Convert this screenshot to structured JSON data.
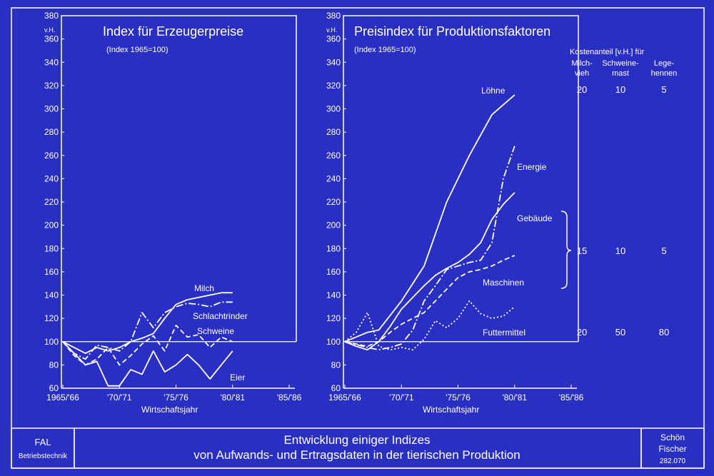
{
  "colors": {
    "background": "#2a2fc4",
    "foreground": "#ffffff"
  },
  "footer": {
    "left_line1": "FAL",
    "left_line2": "Betriebstechnik",
    "title_line1": "Entwicklung einiger Indizes",
    "title_line2": "von Aufwands- und Ertragsdaten in der tierischen Produktion",
    "right_line1": "Schön",
    "right_line2": "Fischer",
    "right_line3": "282.070"
  },
  "cost_share": {
    "header": "Kostenanteil [v.H.] für",
    "columns": [
      "Milch-\nvieh",
      "Schweine-\nmast",
      "Lege-\nhennen"
    ],
    "rows": [
      {
        "label": "Löhne",
        "values": [
          "20",
          "10",
          "5"
        ]
      },
      {
        "label": "Energie, Gebäude, Maschinen",
        "values": [
          "15",
          "10",
          "5"
        ]
      },
      {
        "label": "Futtermittel",
        "values": [
          "20",
          "50",
          "80"
        ]
      }
    ]
  },
  "chart_data": [
    {
      "type": "line",
      "title": "Index für Erzeugerpreise",
      "subtitle": "(Index 1965=100)",
      "xlabel": "Wirtschaftsjahr",
      "ylabel": "v.H.",
      "x_ticks": [
        "1965/'66",
        "'70/'71",
        "'75/'76",
        "'80/'81",
        "'85/'86"
      ],
      "xlim": [
        1965,
        1985
      ],
      "ylim": [
        60,
        380
      ],
      "y_ticks": [
        60,
        80,
        100,
        120,
        140,
        160,
        180,
        200,
        220,
        240,
        260,
        280,
        300,
        320,
        340,
        360,
        380
      ],
      "baseline": 100,
      "series": [
        {
          "name": "Milch",
          "style": "solid",
          "points": [
            [
              1965,
              100
            ],
            [
              1966,
              95
            ],
            [
              1967,
              90
            ],
            [
              1968,
              95
            ],
            [
              1969,
              92
            ],
            [
              1970,
              95
            ],
            [
              1971,
              100
            ],
            [
              1972,
              103
            ],
            [
              1973,
              107
            ],
            [
              1974,
              120
            ],
            [
              1975,
              132
            ],
            [
              1976,
              136
            ],
            [
              1977,
              138
            ],
            [
              1978,
              140
            ],
            [
              1979,
              142
            ],
            [
              1980,
              142
            ]
          ]
        },
        {
          "name": "Schlachtrinder",
          "style": "dashdot",
          "points": [
            [
              1965,
              100
            ],
            [
              1966,
              90
            ],
            [
              1967,
              85
            ],
            [
              1968,
              97
            ],
            [
              1969,
              95
            ],
            [
              1970,
              92
            ],
            [
              1971,
              100
            ],
            [
              1972,
              125
            ],
            [
              1973,
              112
            ],
            [
              1974,
              125
            ],
            [
              1975,
              130
            ],
            [
              1976,
              133
            ],
            [
              1977,
              132
            ],
            [
              1978,
              130
            ],
            [
              1979,
              134
            ],
            [
              1980,
              134
            ]
          ]
        },
        {
          "name": "Schweine",
          "style": "dashed",
          "points": [
            [
              1965,
              100
            ],
            [
              1966,
              88
            ],
            [
              1967,
              80
            ],
            [
              1968,
              85
            ],
            [
              1969,
              95
            ],
            [
              1970,
              80
            ],
            [
              1971,
              88
            ],
            [
              1972,
              98
            ],
            [
              1973,
              105
            ],
            [
              1974,
              92
            ],
            [
              1975,
              114
            ],
            [
              1976,
              104
            ],
            [
              1977,
              106
            ],
            [
              1978,
              95
            ],
            [
              1979,
              104
            ],
            [
              1980,
              100
            ]
          ]
        },
        {
          "name": "Eier",
          "style": "solid",
          "points": [
            [
              1965,
              100
            ],
            [
              1966,
              90
            ],
            [
              1967,
              80
            ],
            [
              1968,
              83
            ],
            [
              1969,
              62
            ],
            [
              1970,
              62
            ],
            [
              1971,
              76
            ],
            [
              1972,
              72
            ],
            [
              1973,
              92
            ],
            [
              1974,
              74
            ],
            [
              1975,
              80
            ],
            [
              1976,
              89
            ],
            [
              1977,
              80
            ],
            [
              1978,
              68
            ],
            [
              1979,
              80
            ],
            [
              1980,
              92
            ]
          ]
        }
      ]
    },
    {
      "type": "line",
      "title": "Preisindex für Produktionsfaktoren",
      "subtitle": "(Index 1965=100)",
      "xlabel": "Wirtschaftsjahr",
      "ylabel": "v.H.",
      "x_ticks": [
        "1965/'66",
        "'70/'71",
        "'75/'76",
        "'80/'81",
        "'85/'86"
      ],
      "xlim": [
        1965,
        1985
      ],
      "ylim": [
        60,
        380
      ],
      "y_ticks": [
        60,
        80,
        100,
        120,
        140,
        160,
        180,
        200,
        220,
        240,
        260,
        280,
        300,
        320,
        340,
        360,
        380
      ],
      "baseline": 100,
      "series": [
        {
          "name": "Löhne",
          "style": "solid",
          "points": [
            [
              1965,
              100
            ],
            [
              1967,
              108
            ],
            [
              1968,
              110
            ],
            [
              1970,
              135
            ],
            [
              1972,
              165
            ],
            [
              1974,
              220
            ],
            [
              1976,
              260
            ],
            [
              1978,
              295
            ],
            [
              1980,
              312
            ]
          ]
        },
        {
          "name": "Energie",
          "style": "dashdot",
          "points": [
            [
              1965,
              100
            ],
            [
              1967,
              95
            ],
            [
              1968,
              93
            ],
            [
              1969,
              95
            ],
            [
              1970,
              98
            ],
            [
              1971,
              110
            ],
            [
              1972,
              135
            ],
            [
              1973,
              148
            ],
            [
              1974,
              162
            ],
            [
              1975,
              165
            ],
            [
              1976,
              168
            ],
            [
              1977,
              170
            ],
            [
              1978,
              185
            ],
            [
              1979,
              240
            ],
            [
              1980,
              268
            ]
          ]
        },
        {
          "name": "Gebäude",
          "style": "solid",
          "points": [
            [
              1965,
              100
            ],
            [
              1966,
              96
            ],
            [
              1967,
              93
            ],
            [
              1968,
              100
            ],
            [
              1969,
              113
            ],
            [
              1970,
              128
            ],
            [
              1971,
              138
            ],
            [
              1972,
              148
            ],
            [
              1973,
              157
            ],
            [
              1974,
              163
            ],
            [
              1975,
              168
            ],
            [
              1976,
              175
            ],
            [
              1977,
              185
            ],
            [
              1978,
              205
            ],
            [
              1979,
              218
            ],
            [
              1980,
              228
            ]
          ]
        },
        {
          "name": "Maschinen",
          "style": "dashed",
          "points": [
            [
              1965,
              100
            ],
            [
              1966,
              98
            ],
            [
              1967,
              96
            ],
            [
              1968,
              100
            ],
            [
              1969,
              108
            ],
            [
              1970,
              115
            ],
            [
              1971,
              120
            ],
            [
              1972,
              125
            ],
            [
              1973,
              135
            ],
            [
              1974,
              145
            ],
            [
              1975,
              155
            ],
            [
              1976,
              160
            ],
            [
              1977,
              162
            ],
            [
              1978,
              165
            ],
            [
              1979,
              170
            ],
            [
              1980,
              174
            ]
          ]
        },
        {
          "name": "Futtermittel",
          "style": "dotted",
          "points": [
            [
              1965,
              100
            ],
            [
              1966,
              108
            ],
            [
              1967,
              125
            ],
            [
              1968,
              96
            ],
            [
              1969,
              93
            ],
            [
              1970,
              95
            ],
            [
              1971,
              93
            ],
            [
              1972,
              102
            ],
            [
              1973,
              118
            ],
            [
              1974,
              112
            ],
            [
              1975,
              120
            ],
            [
              1976,
              135
            ],
            [
              1977,
              124
            ],
            [
              1978,
              120
            ],
            [
              1979,
              122
            ],
            [
              1980,
              130
            ]
          ]
        }
      ]
    }
  ]
}
